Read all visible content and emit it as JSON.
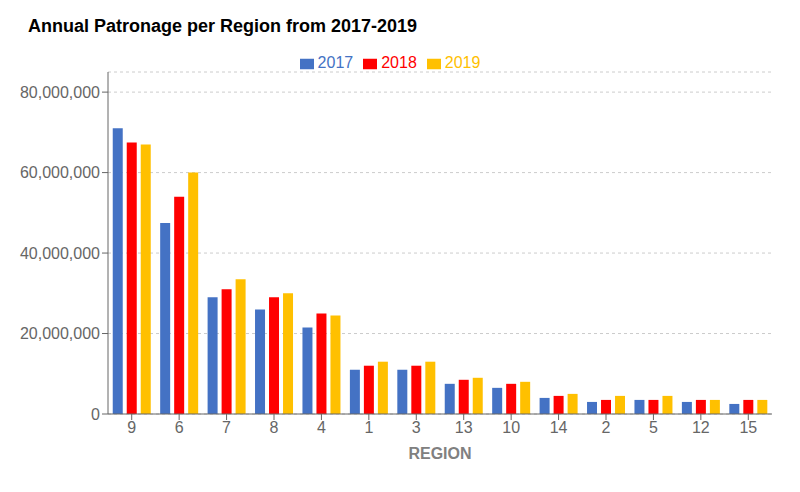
{
  "chart_data": {
    "type": "bar",
    "title": "Annual Patronage per Region from 2017-2019",
    "xlabel": "REGION",
    "categories": [
      "9",
      "6",
      "7",
      "8",
      "4",
      "1",
      "3",
      "13",
      "10",
      "14",
      "2",
      "5",
      "12",
      "15"
    ],
    "series": [
      {
        "name": "2017",
        "color": "#4472C4",
        "values": [
          71000000,
          47500000,
          29000000,
          26000000,
          21500000,
          11000000,
          11000000,
          7500000,
          6500000,
          4000000,
          3000000,
          3500000,
          3000000,
          2500000
        ]
      },
      {
        "name": "2018",
        "color": "#FF0000",
        "values": [
          67500000,
          54000000,
          31000000,
          29000000,
          25000000,
          12000000,
          12000000,
          8500000,
          7500000,
          4500000,
          3500000,
          3500000,
          3500000,
          3500000
        ]
      },
      {
        "name": "2019",
        "color": "#FFC000",
        "values": [
          67000000,
          60000000,
          33500000,
          30000000,
          24500000,
          13000000,
          13000000,
          9000000,
          8000000,
          5000000,
          4500000,
          4500000,
          3500000,
          3500000
        ]
      }
    ],
    "ylim": [
      0,
      85000000
    ],
    "yticks": [
      0,
      {
        "value": 20000000,
        "label": "20,000,000"
      },
      {
        "value": 40000000,
        "label": "40,000,000"
      },
      {
        "value": 60000000,
        "label": "60,000,000"
      },
      {
        "value": 80000000,
        "label": "80,000,000"
      }
    ],
    "grid": true,
    "legend": "top"
  }
}
